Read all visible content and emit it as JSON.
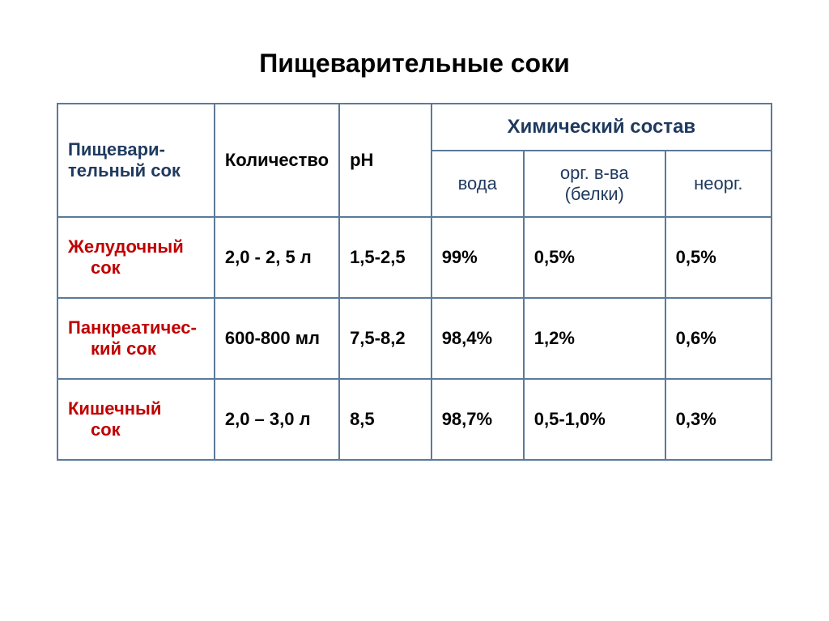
{
  "title": "Пищеварительные соки",
  "headers": {
    "col1_line1": "Пищевари-",
    "col1_line2": "тельный сок",
    "col2": "Количество",
    "col3": "рН",
    "chem": "Химический состав",
    "sub_water": "вода",
    "sub_org_line1": "орг. в-ва",
    "sub_org_line2": "(белки)",
    "sub_inorg": "неорг."
  },
  "rows": [
    {
      "label_line1": "Желудочный",
      "label_line2": "сок",
      "quantity": "2,0 - 2, 5 л",
      "ph": "1,5-2,5",
      "water": "99%",
      "org": "0,5%",
      "inorg": " 0,5%"
    },
    {
      "label_line1": "Панкреатичес-",
      "label_line2": "кий  сок",
      "quantity": "600-800 мл",
      "ph": "7,5-8,2",
      "water": "98,4%",
      "org": "1,2%",
      "inorg": "0,6%"
    },
    {
      "label_line1": "Кишечный",
      "label_line2": "сок",
      "quantity": "2,0 – 3,0 л",
      "ph": "8,5",
      "water": "98,7%",
      "org": "0,5-1,0%",
      "inorg": "0,3%"
    }
  ],
  "styling": {
    "border_color": "#5b7a99",
    "title_color": "#000000",
    "header_blue": "#1f3a5f",
    "header_black": "#000000",
    "row_label_color": "#c00000",
    "data_color": "#000000",
    "background": "#ffffff",
    "title_fontsize": 32,
    "cell_fontsize": 22,
    "chem_fontsize": 24
  }
}
